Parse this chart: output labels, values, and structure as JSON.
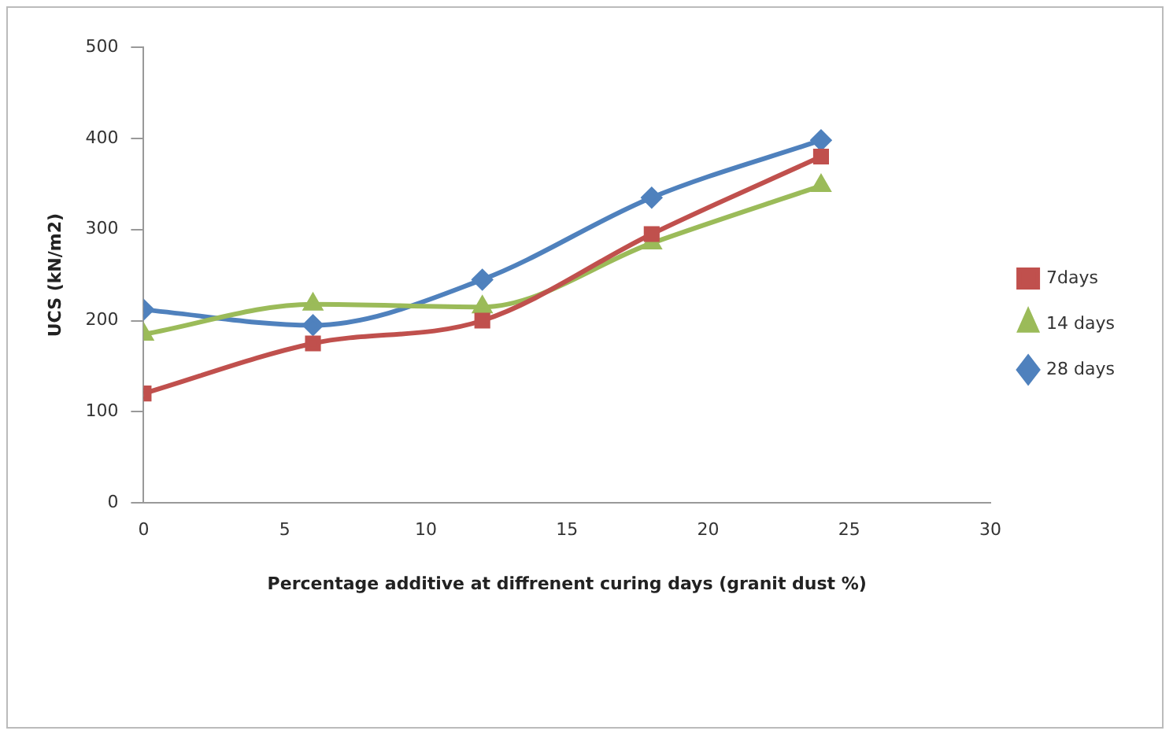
{
  "chart_data": {
    "type": "line",
    "xlabel": "Percentage additive at diffrenent curing days (granit dust %)",
    "ylabel": "UCS (kN/m2)",
    "x": [
      0,
      6,
      12,
      18,
      24
    ],
    "series": [
      {
        "name": "7days",
        "color": "#c0504d",
        "marker": "square",
        "values": [
          120,
          175,
          200,
          295,
          380
        ]
      },
      {
        "name": "14 days",
        "color": "#9bbb59",
        "marker": "triangle",
        "values": [
          185,
          218,
          215,
          285,
          348
        ]
      },
      {
        "name": "28 days",
        "color": "#4f81bd",
        "marker": "diamond",
        "values": [
          212,
          195,
          245,
          335,
          398
        ]
      }
    ],
    "xlim": [
      0,
      30
    ],
    "xticks": [
      0,
      5,
      10,
      15,
      20,
      25,
      30
    ],
    "ylim": [
      0,
      500
    ],
    "yticks": [
      0,
      100,
      200,
      300,
      400,
      500
    ],
    "grid": false,
    "legend": "right"
  }
}
